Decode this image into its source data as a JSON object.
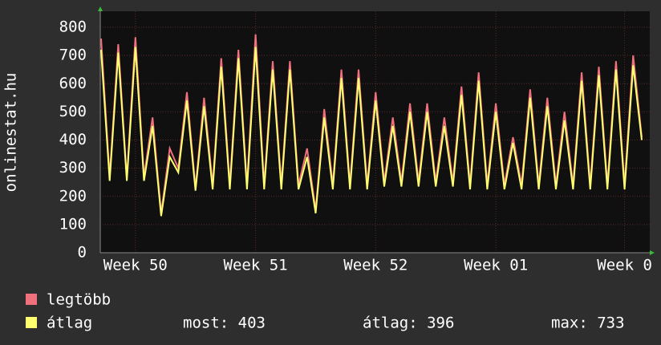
{
  "chart_data": {
    "type": "line",
    "ylabel": "onlinestat.hu",
    "categories": [
      null,
      null,
      null,
      null,
      "Week 50",
      null,
      null,
      null,
      null,
      null,
      null,
      null,
      null,
      null,
      null,
      null,
      null,
      null,
      "Week 51",
      null,
      null,
      null,
      null,
      null,
      null,
      null,
      null,
      null,
      null,
      null,
      null,
      null,
      "Week 52",
      null,
      null,
      null,
      null,
      null,
      null,
      null,
      null,
      null,
      null,
      null,
      null,
      null,
      "Week 01",
      null,
      null,
      null,
      null,
      null,
      null,
      null,
      null,
      null,
      null,
      null,
      null,
      null,
      null,
      "Week 0",
      null,
      null
    ],
    "series": [
      {
        "name": "legtöbb",
        "color": "#f0707c",
        "values": [
          760,
          270,
          740,
          265,
          765,
          270,
          480,
          140,
          370,
          300,
          570,
          230,
          550,
          240,
          690,
          240,
          720,
          240,
          775,
          240,
          680,
          240,
          680,
          240,
          370,
          150,
          510,
          240,
          650,
          240,
          650,
          240,
          570,
          250,
          480,
          250,
          530,
          250,
          530,
          250,
          480,
          250,
          590,
          240,
          640,
          240,
          530,
          240,
          410,
          240,
          580,
          240,
          550,
          240,
          500,
          240,
          640,
          240,
          660,
          240,
          680,
          240,
          700,
          410
        ]
      },
      {
        "name": "átlag",
        "color": "#ffff70",
        "values": [
          720,
          255,
          710,
          255,
          730,
          255,
          450,
          130,
          340,
          285,
          540,
          220,
          520,
          225,
          660,
          225,
          690,
          225,
          730,
          225,
          650,
          225,
          650,
          225,
          340,
          140,
          480,
          225,
          620,
          225,
          620,
          225,
          540,
          235,
          450,
          235,
          500,
          235,
          500,
          235,
          450,
          235,
          560,
          225,
          610,
          225,
          500,
          225,
          390,
          225,
          550,
          225,
          520,
          225,
          470,
          225,
          610,
          225,
          630,
          225,
          650,
          225,
          665,
          400
        ]
      }
    ],
    "ylim": [
      0,
      800
    ],
    "yticks": [
      0,
      100,
      200,
      300,
      400,
      500,
      600,
      700,
      800
    ],
    "grid": true,
    "stats": [
      "most: 403",
      "átlag: 396",
      "max: 733"
    ]
  }
}
